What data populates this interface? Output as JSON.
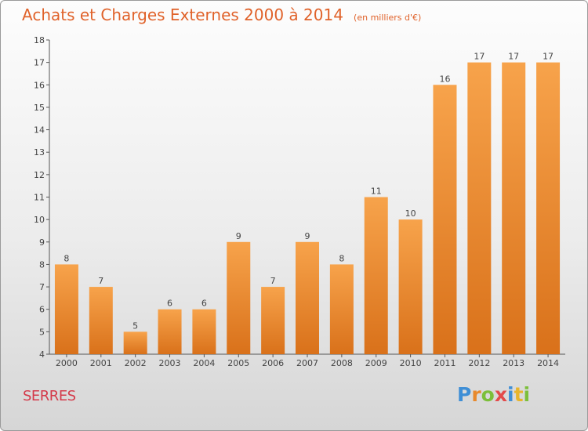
{
  "header": {
    "title": "Achats et Charges Externes 2000 à 2014",
    "subtitle": "(en milliers d'€)"
  },
  "commune": "SERRES",
  "logo": {
    "text": "Proxiti",
    "letters": [
      {
        "ch": "P",
        "color": "#3f8fd6"
      },
      {
        "ch": "r",
        "color": "#e8892c"
      },
      {
        "ch": "o",
        "color": "#7cbf3a"
      },
      {
        "ch": "x",
        "color": "#e34a4a"
      },
      {
        "ch": "i",
        "color": "#3f8fd6"
      },
      {
        "ch": "t",
        "color": "#e8b52c"
      },
      {
        "ch": "i",
        "color": "#7cbf3a"
      }
    ]
  },
  "colors": {
    "bar_top": "#f7a34b",
    "bar_bottom": "#d9711a",
    "title": "#e0622a",
    "commune": "#d43a4a"
  },
  "chart_data": {
    "type": "bar",
    "categories": [
      "2000",
      "2001",
      "2002",
      "2003",
      "2004",
      "2005",
      "2006",
      "2007",
      "2008",
      "2009",
      "2010",
      "2011",
      "2012",
      "2013",
      "2014"
    ],
    "values": [
      8,
      7,
      5,
      6,
      6,
      9,
      7,
      9,
      8,
      11,
      10,
      16,
      17,
      17,
      17
    ],
    "data_labels": [
      "8",
      "7",
      "5",
      "6",
      "6",
      "9",
      "7",
      "9",
      "8",
      "11",
      "10",
      "16",
      "17",
      "17",
      "17"
    ],
    "ylim": [
      4,
      18
    ],
    "yticks": [
      4,
      5,
      6,
      7,
      8,
      9,
      10,
      11,
      12,
      13,
      14,
      15,
      16,
      17,
      18
    ],
    "grid": false,
    "legend": "none"
  }
}
